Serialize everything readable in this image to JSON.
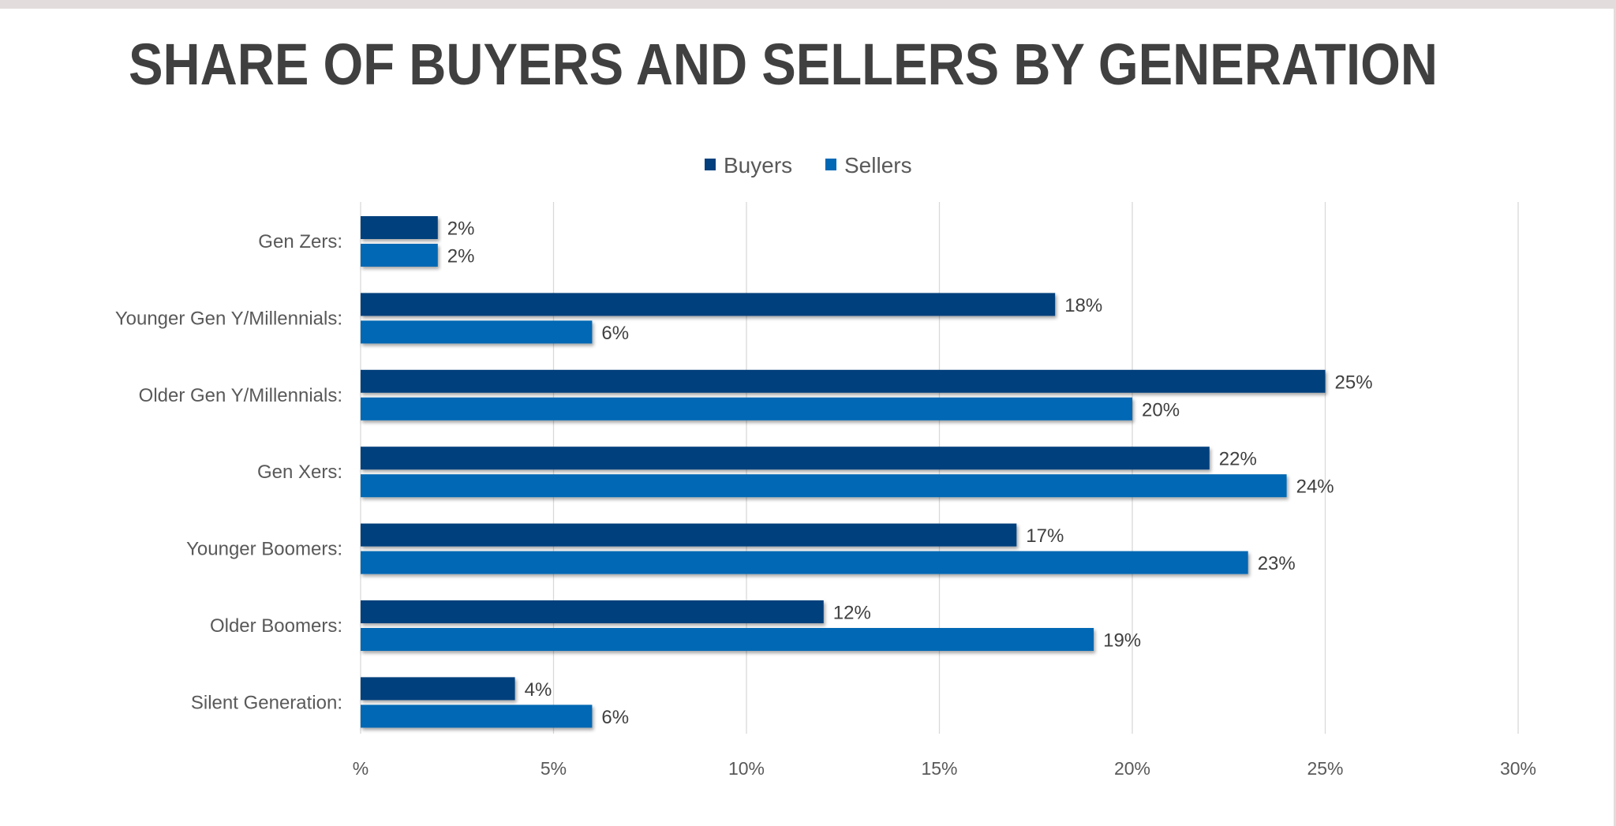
{
  "chart_data": {
    "type": "bar",
    "orientation": "horizontal",
    "title": "SHARE OF BUYERS AND SELLERS BY GENERATION",
    "categories": [
      "Gen Zers:",
      "Younger Gen Y/Millennials:",
      "Older Gen Y/Millennials:",
      "Gen Xers:",
      "Younger Boomers:",
      "Older Boomers:",
      "Silent Generation:"
    ],
    "series": [
      {
        "name": "Buyers",
        "color": "#023f7c",
        "values": [
          2,
          18,
          25,
          22,
          17,
          12,
          4
        ],
        "labels": [
          "2%",
          "18%",
          "25%",
          "22%",
          "17%",
          "12%",
          "4%"
        ]
      },
      {
        "name": "Sellers",
        "color": "#0068b4",
        "values": [
          2,
          6,
          20,
          24,
          23,
          19,
          6
        ],
        "labels": [
          "2%",
          "6%",
          "20%",
          "24%",
          "23%",
          "19%",
          "6%"
        ]
      }
    ],
    "xlim": [
      0,
      30
    ],
    "xticks": [
      0,
      5,
      10,
      15,
      20,
      25,
      30
    ],
    "xtick_labels": [
      "%",
      "5%",
      "10%",
      "15%",
      "20%",
      "25%",
      "30%"
    ],
    "xlabel": "",
    "ylabel": "",
    "grid": true,
    "legend_position": "top-center"
  }
}
